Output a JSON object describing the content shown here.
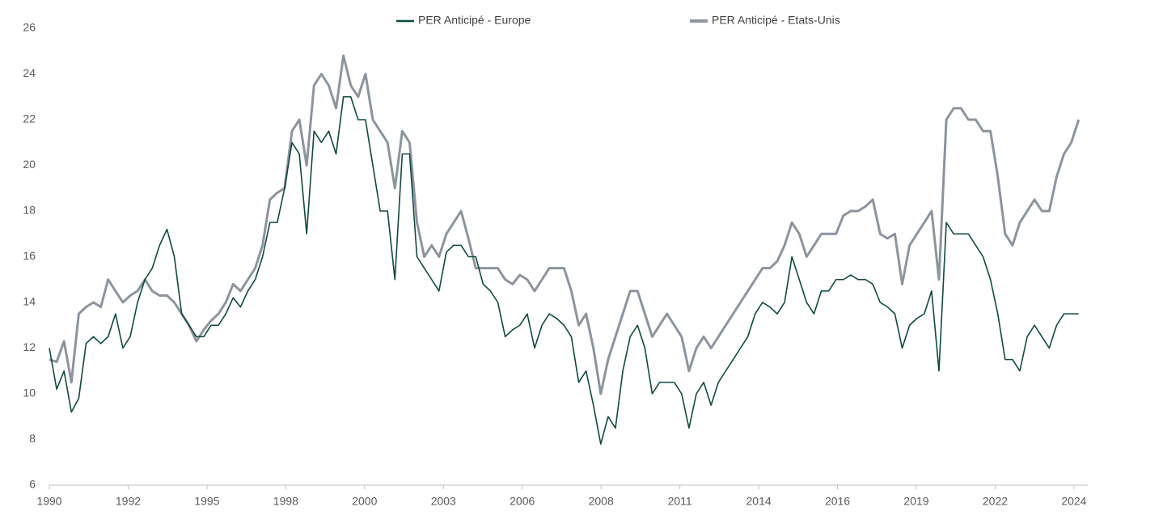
{
  "chart_data": {
    "type": "line",
    "legend": "top",
    "grid": false,
    "xlim": [
      1990,
      2025.2
    ],
    "xticks": [
      {
        "value": 1990,
        "label": "1990"
      },
      {
        "value": 1992.68,
        "label": "1992"
      },
      {
        "value": 1995.36,
        "label": "1995"
      },
      {
        "value": 1998.04,
        "label": "1998"
      },
      {
        "value": 2000.72,
        "label": "2000"
      },
      {
        "value": 2003.4,
        "label": "2003"
      },
      {
        "value": 2006.08,
        "label": "2006"
      },
      {
        "value": 2008.76,
        "label": "2008"
      },
      {
        "value": 2011.44,
        "label": "2011"
      },
      {
        "value": 2014.12,
        "label": "2014"
      },
      {
        "value": 2016.8,
        "label": "2016"
      },
      {
        "value": 2019.48,
        "label": "2019"
      },
      {
        "value": 2022.16,
        "label": "2022"
      },
      {
        "value": 2024.84,
        "label": "2024"
      }
    ],
    "ylim": [
      6,
      26
    ],
    "yticks": [
      6,
      8,
      10,
      12,
      14,
      16,
      18,
      20,
      22,
      24,
      26
    ],
    "x": [
      1990,
      1990.25,
      1990.5,
      1990.75,
      1991,
      1991.25,
      1991.5,
      1991.75,
      1992,
      1992.25,
      1992.5,
      1992.75,
      1993,
      1993.25,
      1993.5,
      1993.75,
      1994,
      1994.25,
      1994.5,
      1994.75,
      1995,
      1995.25,
      1995.5,
      1995.75,
      1996,
      1996.25,
      1996.5,
      1996.75,
      1997,
      1997.25,
      1997.5,
      1997.75,
      1998,
      1998.25,
      1998.5,
      1998.75,
      1999,
      1999.25,
      1999.5,
      1999.75,
      2000,
      2000.25,
      2000.5,
      2000.75,
      2001,
      2001.25,
      2001.5,
      2001.75,
      2002,
      2002.25,
      2002.5,
      2002.75,
      2003,
      2003.25,
      2003.5,
      2003.75,
      2004,
      2004.25,
      2004.5,
      2004.75,
      2005,
      2005.25,
      2005.5,
      2005.75,
      2006,
      2006.25,
      2006.5,
      2006.75,
      2007,
      2007.25,
      2007.5,
      2007.75,
      2008,
      2008.25,
      2008.5,
      2008.75,
      2009,
      2009.25,
      2009.5,
      2009.75,
      2010,
      2010.25,
      2010.5,
      2010.75,
      2011,
      2011.25,
      2011.5,
      2011.75,
      2012,
      2012.25,
      2012.5,
      2012.75,
      2013,
      2013.25,
      2013.5,
      2013.75,
      2014,
      2014.25,
      2014.5,
      2014.75,
      2015,
      2015.25,
      2015.5,
      2015.75,
      2016,
      2016.25,
      2016.5,
      2016.75,
      2017,
      2017.25,
      2017.5,
      2017.75,
      2018,
      2018.25,
      2018.5,
      2018.75,
      2019,
      2019.25,
      2019.5,
      2019.75,
      2020,
      2020.25,
      2020.5,
      2020.75,
      2021,
      2021.25,
      2021.5,
      2021.75,
      2022,
      2022.25,
      2022.5,
      2022.75,
      2023,
      2023.25,
      2023.5,
      2023.75,
      2024,
      2024.25,
      2024.5,
      2024.75,
      2025
    ],
    "series": [
      {
        "name": "PER Anticipé - Europe",
        "color": "#0d4a40",
        "width": 1.6,
        "values": [
          12,
          10.2,
          11,
          9.2,
          9.8,
          12.2,
          12.5,
          12.2,
          12.5,
          13.5,
          12,
          12.5,
          14,
          15,
          15.5,
          16.5,
          17.2,
          16,
          13.5,
          13,
          12.5,
          12.5,
          13,
          13,
          13.5,
          14.2,
          13.8,
          14.5,
          15,
          16,
          17.5,
          17.5,
          19,
          21,
          20.5,
          17,
          21.5,
          21,
          21.5,
          20.5,
          23,
          23,
          22,
          22,
          20,
          18,
          18,
          15,
          20.5,
          20.5,
          16,
          15.5,
          15,
          14.5,
          16.2,
          16.5,
          16.5,
          16,
          16,
          14.8,
          14.5,
          14,
          12.5,
          12.8,
          13,
          13.5,
          12,
          13,
          13.5,
          13.3,
          13,
          12.5,
          10.5,
          11,
          9.5,
          7.8,
          9,
          8.5,
          11,
          12.5,
          13,
          12,
          10,
          10.5,
          10.5,
          10.5,
          10,
          8.5,
          10,
          10.5,
          9.5,
          10.5,
          11,
          11.5,
          12,
          12.5,
          13.5,
          14,
          13.8,
          13.5,
          14,
          16,
          15,
          14,
          13.5,
          14.5,
          14.5,
          15,
          15,
          15.2,
          15,
          15,
          14.8,
          14,
          13.8,
          13.5,
          12,
          13,
          13.3,
          13.5,
          14.5,
          11,
          17.5,
          17,
          17,
          17,
          16.5,
          16,
          15,
          13.5,
          11.5,
          11.5,
          11,
          12.5,
          13,
          12.5,
          12,
          13,
          13.5,
          13.5,
          13.5
        ]
      },
      {
        "name": "PER Anticipé - Etats-Unis",
        "color": "#8c949e",
        "width": 3,
        "values": [
          11.5,
          11.4,
          12.3,
          10.5,
          13.5,
          13.8,
          14,
          13.8,
          15,
          14.5,
          14,
          14.3,
          14.5,
          15,
          14.5,
          14.3,
          14.3,
          14,
          13.5,
          13,
          12.3,
          12.8,
          13.2,
          13.5,
          14,
          14.8,
          14.5,
          15,
          15.5,
          16.5,
          18.5,
          18.8,
          19,
          21.5,
          22,
          20,
          23.5,
          24,
          23.5,
          22.5,
          24.8,
          23.5,
          23,
          24,
          22,
          21.5,
          21,
          19,
          21.5,
          21,
          17.5,
          16,
          16.5,
          16,
          17,
          17.5,
          18,
          16.8,
          15.5,
          15.5,
          15.5,
          15.5,
          15,
          14.8,
          15.2,
          15,
          14.5,
          15,
          15.5,
          15.5,
          15.5,
          14.5,
          13,
          13.5,
          12,
          10,
          11.5,
          12.5,
          13.5,
          14.5,
          14.5,
          13.5,
          12.5,
          13,
          13.5,
          13,
          12.5,
          11,
          12,
          12.5,
          12,
          12.5,
          13,
          13.5,
          14,
          14.5,
          15,
          15.5,
          15.5,
          15.8,
          16.5,
          17.5,
          17,
          16,
          16.5,
          17,
          17,
          17,
          17.8,
          18,
          18,
          18.2,
          18.5,
          17,
          16.8,
          17,
          14.8,
          16.5,
          17,
          17.5,
          18,
          15,
          22,
          22.5,
          22.5,
          22,
          22,
          21.5,
          21.5,
          19.5,
          17,
          16.5,
          17.5,
          18,
          18.5,
          18,
          18,
          19.5,
          20.5,
          21,
          22
        ]
      }
    ]
  }
}
